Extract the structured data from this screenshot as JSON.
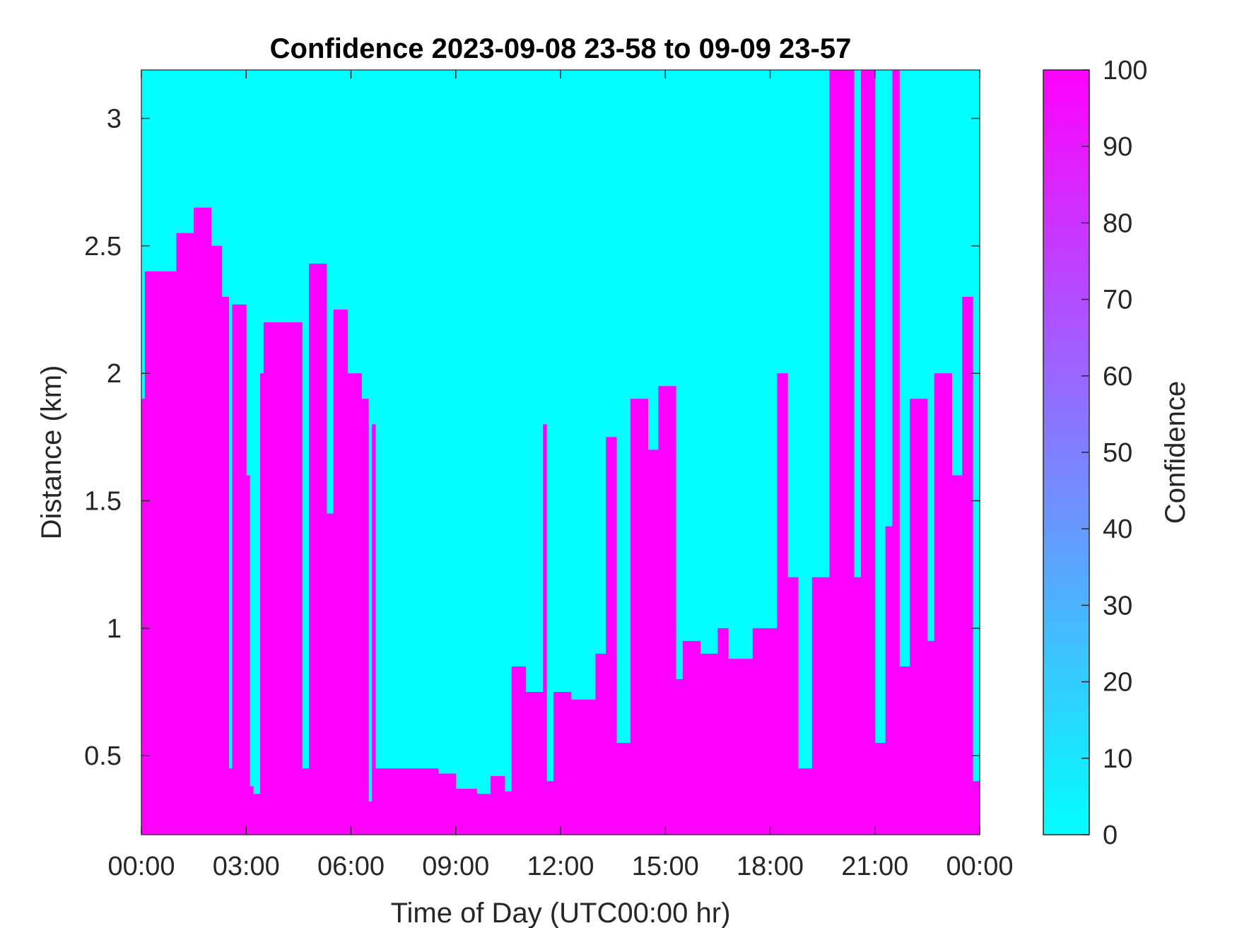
{
  "chart_data": {
    "type": "heatmap",
    "title": "Confidence 2023-09-08 23-58 to 09-09 23-57",
    "xlabel": "Time of Day (UTC00:00 hr)",
    "ylabel": "Distance (km)",
    "xlim": [
      0,
      24
    ],
    "ylim": [
      0.19,
      3.19
    ],
    "xticks": [
      0,
      3,
      6,
      9,
      12,
      15,
      18,
      21,
      24
    ],
    "xtick_labels": [
      "00:00",
      "03:00",
      "06:00",
      "09:00",
      "12:00",
      "15:00",
      "18:00",
      "21:00",
      "00:00"
    ],
    "yticks": [
      0.5,
      1,
      1.5,
      2,
      2.5,
      3
    ],
    "ytick_labels": [
      "0.5",
      "1",
      "1.5",
      "2",
      "2.5",
      "3"
    ],
    "colorbar": {
      "label": "Confidence",
      "range": [
        0,
        100
      ],
      "ticks": [
        "0",
        "10",
        "20",
        "30",
        "40",
        "50",
        "60",
        "70",
        "80",
        "90",
        "100"
      ],
      "colormap": "cool",
      "low_color": "#00FFFF",
      "high_color": "#FF00FF"
    },
    "background_value": 0,
    "high_confidence_value": 100,
    "high_confidence_regions_hours_km": [
      [
        0.0,
        0.1,
        0.19,
        1.9
      ],
      [
        0.1,
        1.0,
        0.19,
        2.4
      ],
      [
        1.0,
        1.5,
        0.19,
        2.55
      ],
      [
        1.5,
        2.0,
        0.19,
        2.65
      ],
      [
        2.0,
        2.3,
        0.19,
        2.5
      ],
      [
        2.3,
        2.5,
        0.19,
        2.3
      ],
      [
        2.5,
        2.6,
        0.19,
        0.45
      ],
      [
        2.6,
        3.0,
        0.19,
        2.27
      ],
      [
        3.0,
        3.1,
        0.19,
        1.6
      ],
      [
        3.1,
        3.2,
        0.19,
        0.38
      ],
      [
        3.2,
        3.4,
        0.19,
        0.35
      ],
      [
        3.4,
        3.5,
        0.19,
        2.0
      ],
      [
        3.5,
        4.6,
        0.19,
        2.2
      ],
      [
        4.6,
        4.8,
        0.19,
        0.45
      ],
      [
        4.8,
        5.3,
        0.19,
        2.43
      ],
      [
        5.3,
        5.5,
        0.19,
        1.45
      ],
      [
        5.5,
        5.9,
        0.19,
        2.25
      ],
      [
        5.9,
        6.3,
        0.19,
        2.0
      ],
      [
        6.3,
        6.5,
        0.19,
        1.9
      ],
      [
        6.5,
        6.6,
        0.19,
        0.32
      ],
      [
        6.6,
        6.7,
        0.19,
        1.8
      ],
      [
        6.7,
        8.5,
        0.19,
        0.45
      ],
      [
        8.5,
        9.0,
        0.19,
        0.43
      ],
      [
        9.0,
        9.6,
        0.19,
        0.37
      ],
      [
        9.6,
        10.0,
        0.19,
        0.35
      ],
      [
        10.0,
        10.4,
        0.19,
        0.42
      ],
      [
        10.4,
        10.6,
        0.19,
        0.36
      ],
      [
        10.6,
        11.0,
        0.19,
        0.85
      ],
      [
        11.0,
        11.5,
        0.19,
        0.75
      ],
      [
        11.5,
        11.6,
        0.19,
        1.8
      ],
      [
        11.6,
        11.8,
        0.19,
        0.4
      ],
      [
        11.8,
        12.3,
        0.19,
        0.75
      ],
      [
        12.3,
        13.0,
        0.19,
        0.72
      ],
      [
        13.0,
        13.3,
        0.19,
        0.9
      ],
      [
        13.3,
        13.6,
        0.19,
        1.75
      ],
      [
        13.6,
        14.0,
        0.19,
        0.55
      ],
      [
        14.0,
        14.5,
        0.19,
        1.9
      ],
      [
        14.5,
        14.8,
        0.19,
        1.7
      ],
      [
        14.8,
        15.3,
        0.19,
        1.95
      ],
      [
        15.3,
        15.5,
        0.19,
        0.8
      ],
      [
        15.5,
        16.0,
        0.19,
        0.95
      ],
      [
        16.0,
        16.5,
        0.19,
        0.9
      ],
      [
        16.5,
        16.8,
        0.19,
        1.0
      ],
      [
        16.8,
        17.5,
        0.19,
        0.88
      ],
      [
        17.5,
        18.2,
        0.19,
        1.0
      ],
      [
        18.2,
        18.5,
        0.19,
        2.0
      ],
      [
        18.5,
        18.8,
        0.19,
        1.2
      ],
      [
        18.8,
        19.2,
        0.19,
        0.45
      ],
      [
        19.2,
        19.7,
        0.19,
        1.2
      ],
      [
        19.7,
        20.4,
        0.19,
        3.19
      ],
      [
        20.4,
        20.6,
        0.19,
        1.2
      ],
      [
        20.6,
        21.0,
        0.19,
        3.19
      ],
      [
        21.0,
        21.3,
        0.19,
        0.55
      ],
      [
        21.3,
        21.5,
        0.19,
        1.4
      ],
      [
        21.5,
        21.7,
        0.19,
        3.19
      ],
      [
        21.7,
        22.0,
        0.19,
        0.85
      ],
      [
        22.0,
        22.5,
        0.19,
        1.9
      ],
      [
        22.5,
        22.7,
        0.19,
        0.95
      ],
      [
        22.7,
        23.2,
        0.19,
        2.0
      ],
      [
        23.2,
        23.5,
        0.19,
        1.6
      ],
      [
        23.5,
        23.8,
        0.19,
        2.3
      ],
      [
        23.8,
        24.0,
        0.19,
        0.4
      ]
    ]
  }
}
